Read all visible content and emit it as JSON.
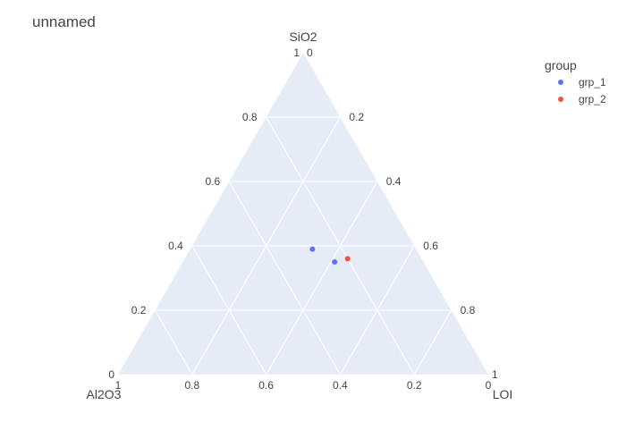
{
  "chart_data": {
    "type": "scatter",
    "subtype": "ternary",
    "title": "unnamed",
    "axes": {
      "a": "SiO2",
      "b": "Al2O3",
      "c": "LOI"
    },
    "ticks": [
      "0.2",
      "0.4",
      "0.6",
      "0.8"
    ],
    "corner_labels": {
      "zero": "0",
      "one": "1"
    },
    "legend": {
      "title": "group",
      "placement": "top-right"
    },
    "grid": true,
    "background_color": "#e5ecf6",
    "gridline_color": "#ffffff",
    "series": [
      {
        "name": "grp_1",
        "color": "#636efa",
        "points": [
          {
            "a": 0.39,
            "b": 0.28,
            "c": 0.33
          },
          {
            "a": 0.35,
            "b": 0.24,
            "c": 0.41
          }
        ]
      },
      {
        "name": "grp_2",
        "color": "#ef553b",
        "points": [
          {
            "a": 0.36,
            "b": 0.2,
            "c": 0.44
          }
        ]
      }
    ]
  }
}
